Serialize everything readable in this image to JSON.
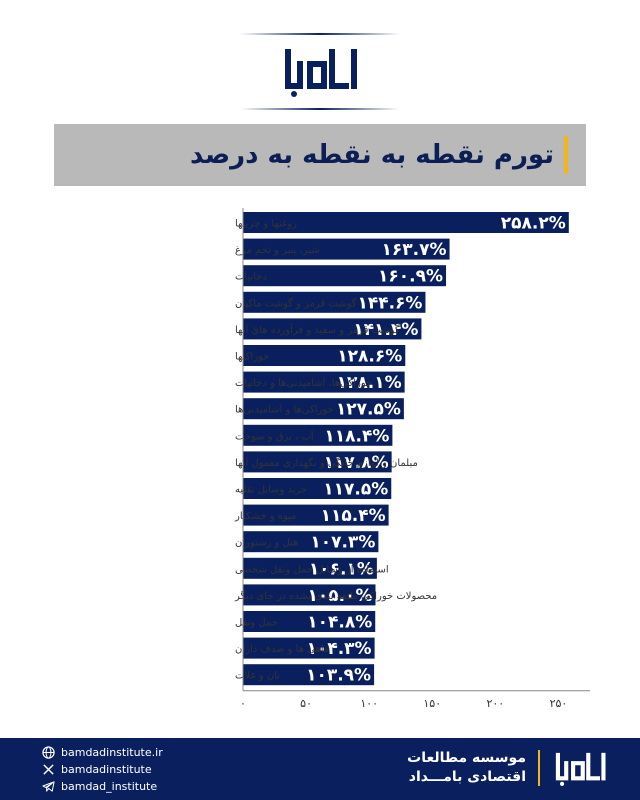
{
  "header": {
    "logo_text": "بامداد"
  },
  "title": "تورم نقطه به نقطه به درصد",
  "colors": {
    "bar": "#0a205e",
    "accent": "#f3b51b",
    "title_band": "#b9b9b9",
    "footer": "#0a205e"
  },
  "chart_data": {
    "type": "bar",
    "orientation": "horizontal",
    "categories": [
      "روغنها و چربیها",
      "شیر، پنیر و تخم مرغ",
      "دخانیات",
      "گوشت قرمز و گوشت ماکیان",
      "گوشت قرمز و سفید و فرآورده هایٔ آنها",
      "خوراکیها",
      "خوراکی‌ها، آشامیدنی‌ها و دخانیات",
      "خوراکی‌ها و آشامیدنی‌ها",
      "آب ، برق و سوخت",
      "مبلمان و لوازم خانگی و نگهداری معمول آنها",
      "خرید وسایل نقلیه",
      "میوه و خشکبار",
      "هتل و رستوران",
      "استفاده از وسایل حمل ونقل شخصی",
      "محصولات خوراکی طبقه بندی نشده در جای دیگر",
      "حمل ونقل",
      "ماهی ها و صدف داران",
      "نان و غلات"
    ],
    "values": [
      258.2,
      163.7,
      160.9,
      144.6,
      141.4,
      128.6,
      128.1,
      127.5,
      118.4,
      117.8,
      117.5,
      115.4,
      107.3,
      106.1,
      105.0,
      104.8,
      104.3,
      103.9
    ],
    "value_labels": [
      "۲۵۸.۲%",
      "۱۶۳.۷%",
      "۱۶۰.۹%",
      "۱۴۴.۶%",
      "۱۴۱.۴%",
      "۱۲۸.۶%",
      "۱۲۸.۱%",
      "۱۲۷.۵%",
      "۱۱۸.۴%",
      "۱۱۷.۸%",
      "۱۱۷.۵%",
      "۱۱۵.۴%",
      "۱۰۷.۳%",
      "۱۰۶.۱%",
      "۱۰۵.۰%",
      "۱۰۴.۸%",
      "۱۰۴.۳%",
      "۱۰۳.۹%"
    ],
    "xlim": [
      0,
      275
    ],
    "xticks": [
      0,
      50,
      100,
      150,
      200,
      250
    ],
    "xtick_labels": [
      "۰",
      "۵۰",
      "۱۰۰",
      "۱۵۰",
      "۲۰۰",
      "۲۵۰"
    ],
    "grid": false,
    "legend": "none"
  },
  "footer": {
    "links": [
      {
        "icon": "globe-icon",
        "text": "bamdadinstitute.ir"
      },
      {
        "icon": "x-icon",
        "text": "bamdadinstitute"
      },
      {
        "icon": "telegram-icon",
        "text": "bamdad_institute"
      }
    ],
    "org_line1": "موسسه مطالعات",
    "org_line2": "اقتصادی بامـــداد",
    "logo_text": "بامداد"
  }
}
